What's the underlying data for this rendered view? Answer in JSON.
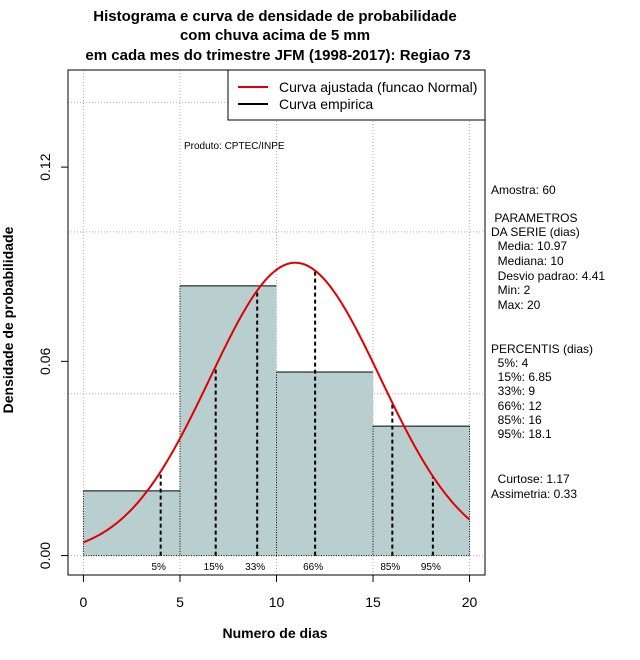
{
  "chart_data": {
    "type": "bar",
    "title_lines": [
      "Histograma e curva de densidade de probabilidade",
      "com chuva acima de 5 mm",
      "em cada mes do trimestre JFM (1998-2017): Regiao 73"
    ],
    "xlabel": "Numero de dias",
    "ylabel": "Densidade de probabilidade",
    "xlim": [
      -0.8,
      20.8
    ],
    "ylim": [
      -0.006,
      0.15
    ],
    "x_ticks": [
      0,
      5,
      10,
      15,
      20
    ],
    "x_tick_labels": [
      "0",
      "5",
      "10",
      "15",
      "20"
    ],
    "y_ticks": [
      0.0,
      0.06,
      0.12
    ],
    "y_tick_labels": [
      "0.00",
      "0.06",
      "0.12"
    ],
    "grid": true,
    "grid_x": [
      0,
      5,
      10,
      15,
      20
    ],
    "grid_y": [
      0.0,
      0.05,
      0.1,
      0.14
    ],
    "bars": [
      {
        "x0": 0,
        "x1": 5,
        "density": 0.02
      },
      {
        "x0": 5,
        "x1": 10,
        "density": 0.0833
      },
      {
        "x0": 10,
        "x1": 15,
        "density": 0.0567
      },
      {
        "x0": 15,
        "x1": 20,
        "density": 0.04
      }
    ],
    "normal_curve": {
      "mean": 10.97,
      "sd": 4.41,
      "x_range": [
        0,
        20
      ]
    },
    "percentiles": [
      {
        "label": "5%",
        "value": 4
      },
      {
        "label": "15%",
        "value": 6.85
      },
      {
        "label": "33%",
        "value": 9
      },
      {
        "label": "66%",
        "value": 12
      },
      {
        "label": "85%",
        "value": 16
      },
      {
        "label": "95%",
        "value": 18.1
      }
    ],
    "legend": {
      "position": "top-right",
      "entries": [
        {
          "label": "Curva ajustada (funcao Normal)",
          "color": "#e00000"
        },
        {
          "label": "Curva empirica",
          "color": "#000000"
        }
      ]
    },
    "annotation": "Produto: CPTEC/INPE",
    "colors": {
      "bar_fill": "#b9cfcf",
      "curve": "#e00000",
      "grid": "#b0b0b0"
    }
  },
  "stats_panel": {
    "lines": [
      "Amostra: 60",
      " PARAMETROS",
      "DA SERIE (dias)",
      "  Media: 10.97",
      "  Mediana: 10",
      "  Desvio padrao: 4.41",
      "  Min: 2",
      "  Max: 20",
      "PERCENTIS (dias)",
      "  5%: 4",
      "  15%: 6.85",
      "  33%: 9",
      "  66%: 12",
      "  85%: 16",
      "  95%: 18.1",
      "  Curtose: 1.17",
      "Assimetria: 0.33"
    ]
  }
}
